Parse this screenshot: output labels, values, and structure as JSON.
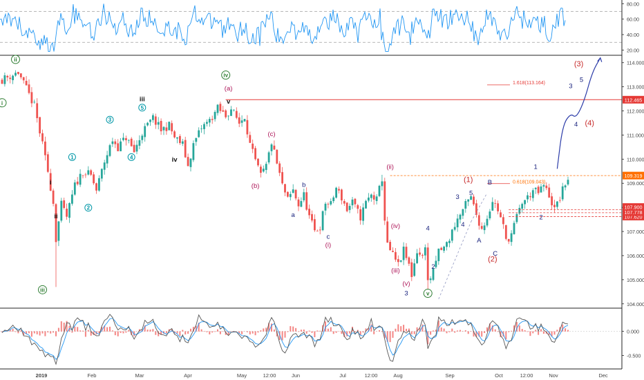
{
  "colors": {
    "candle_up": "#26a69a",
    "candle_down": "#ef5350",
    "rsi_line": "#2196f3",
    "macd_line": "#2962ff",
    "signal_line": "#ff6d00",
    "hist": "#ef5350",
    "resistance": "#e53935",
    "fib": "#ff6f00",
    "projection": "#2b3ba8",
    "projection_dash": "#9aa0c6",
    "label_green": "#2e7d32",
    "label_magenta": "#ad1457",
    "label_blue": "#0097a7",
    "label_navy": "#1a237e",
    "label_red": "#c62828",
    "label_black": "#111111"
  },
  "chart_data": {
    "type": "candlestick",
    "x_labels": [
      "2019",
      "Feb",
      "Mar",
      "Apr",
      "May",
      "12:00",
      "Jun",
      "Jul",
      "12:00",
      "Aug",
      "Sep",
      "Oct",
      "12:00",
      "Nov",
      "Dec"
    ],
    "price_axis": {
      "ylim": [
        103.85,
        114.25
      ],
      "ticks": [
        "104.000",
        "105.000",
        "106.000",
        "107.000",
        "108.000",
        "109.000",
        "110.000",
        "111.000",
        "112.000",
        "113.000",
        "114.000"
      ]
    },
    "rsi_axis": {
      "ylim": [
        15,
        83
      ],
      "ticks": [
        "20.00",
        "40.00",
        "60.00",
        "80.00"
      ],
      "levels": [
        30,
        70
      ]
    },
    "macd_axis": {
      "ylim": [
        -0.75,
        0.45
      ],
      "ticks": [
        "0.000",
        "-0.500"
      ]
    },
    "price_path": [
      [
        0,
        113.3
      ],
      [
        6,
        113.6
      ],
      [
        12,
        112.2
      ],
      [
        17,
        109.5
      ],
      [
        19,
        108.2
      ],
      [
        20,
        106.7
      ],
      [
        22,
        108.1
      ],
      [
        24,
        107.6
      ],
      [
        27,
        108.9
      ],
      [
        30,
        109.5
      ],
      [
        33,
        109.3
      ],
      [
        35,
        108.7
      ],
      [
        38,
        109.9
      ],
      [
        41,
        110.8
      ],
      [
        43,
        110.5
      ],
      [
        46,
        110.9
      ],
      [
        49,
        110.3
      ],
      [
        52,
        111.1
      ],
      [
        56,
        111.7
      ],
      [
        59,
        111.2
      ],
      [
        62,
        111.4
      ],
      [
        64,
        110.9
      ],
      [
        67,
        110.6
      ],
      [
        69,
        109.7
      ],
      [
        71,
        110.6
      ],
      [
        74,
        111.3
      ],
      [
        77,
        111.6
      ],
      [
        80,
        112.1
      ],
      [
        83,
        111.8
      ],
      [
        85,
        112.1
      ],
      [
        88,
        111.5
      ],
      [
        90,
        111.8
      ],
      [
        92,
        110.6
      ],
      [
        94,
        109.9
      ],
      [
        96,
        109.3
      ],
      [
        98,
        109.7
      ],
      [
        100,
        110.7
      ],
      [
        102,
        109.8
      ],
      [
        104,
        108.9
      ],
      [
        106,
        108.3
      ],
      [
        108,
        108.7
      ],
      [
        110,
        108.1
      ],
      [
        112,
        108.5
      ],
      [
        114,
        107.6
      ],
      [
        116,
        107.0
      ],
      [
        118,
        107.2
      ],
      [
        120,
        108.2
      ],
      [
        122,
        108.1
      ],
      [
        124,
        108.8
      ],
      [
        126,
        108.4
      ],
      [
        128,
        107.9
      ],
      [
        130,
        108.2
      ],
      [
        133,
        107.6
      ],
      [
        135,
        108.2
      ],
      [
        137,
        108.5
      ],
      [
        139,
        108.3
      ],
      [
        141,
        109.2
      ],
      [
        142,
        107.5
      ],
      [
        143,
        106.4
      ],
      [
        145,
        106.0
      ],
      [
        147,
        105.6
      ],
      [
        149,
        106.2
      ],
      [
        151,
        105.6
      ],
      [
        152,
        105.2
      ],
      [
        154,
        106.2
      ],
      [
        156,
        105.9
      ],
      [
        157,
        106.5
      ],
      [
        158,
        104.9
      ],
      [
        160,
        105.3
      ],
      [
        162,
        106.2
      ],
      [
        164,
        106.3
      ],
      [
        166,
        106.7
      ],
      [
        168,
        107.3
      ],
      [
        170,
        107.7
      ],
      [
        172,
        108.1
      ],
      [
        174,
        108.4
      ],
      [
        176,
        107.7
      ],
      [
        178,
        107.1
      ],
      [
        180,
        107.6
      ],
      [
        182,
        108.3
      ],
      [
        184,
        107.9
      ],
      [
        186,
        107.2
      ],
      [
        187,
        106.6
      ],
      [
        189,
        106.9
      ],
      [
        191,
        107.6
      ],
      [
        193,
        108.2
      ],
      [
        195,
        108.4
      ],
      [
        197,
        108.7
      ],
      [
        199,
        108.6
      ],
      [
        201,
        108.9
      ],
      [
        203,
        108.5
      ],
      [
        205,
        107.9
      ],
      [
        207,
        108.4
      ],
      [
        209,
        109.0
      ],
      [
        210,
        109.2
      ]
    ],
    "current_price": "109.319",
    "series": [
      {
        "name": "RSI"
      },
      {
        "name": "MACD"
      }
    ],
    "horizontal_levels": [
      {
        "label": "112.465",
        "value": 112.465,
        "style": "solid"
      },
      {
        "label": "109.319",
        "value": 109.319,
        "style": "dashed"
      },
      {
        "label": "107.620",
        "value": 107.62,
        "style": "dashed"
      },
      {
        "label": "107.778",
        "value": 107.778,
        "style": "dashed"
      },
      {
        "label": "107.900",
        "value": 107.9,
        "style": "dashed"
      }
    ],
    "fib_annotations": [
      {
        "text": "1.618(113.164)",
        "value": 113.164
      },
      {
        "text": "0.618(109.043)",
        "value": 109.043
      }
    ],
    "projection_path": [
      [
        206,
        109.6
      ],
      [
        208,
        111.4
      ],
      [
        211,
        111.9
      ],
      [
        213,
        111.7
      ],
      [
        216,
        112.4
      ],
      [
        219,
        113.6
      ],
      [
        222,
        114.2
      ]
    ],
    "wave_labels": [
      {
        "text": "i",
        "color": "green",
        "circled": true,
        "i": 0,
        "v": 112.25
      },
      {
        "text": "ii",
        "color": "green",
        "circled": true,
        "i": 5,
        "v": 114.05
      },
      {
        "text": "iii",
        "color": "green",
        "circled": true,
        "i": 15,
        "v": 104.5
      },
      {
        "text": "iv",
        "color": "green",
        "circled": true,
        "i": 83,
        "v": 113.4
      },
      {
        "text": "v",
        "color": "green",
        "circled": true,
        "i": 158,
        "v": 104.35
      },
      {
        "text": "i",
        "color": "black",
        "i": 18,
        "v": 108.95
      },
      {
        "text": "ii",
        "color": "black",
        "i": 20,
        "v": 107.55
      },
      {
        "text": "iii",
        "color": "black",
        "i": 52,
        "v": 112.4
      },
      {
        "text": "iv",
        "color": "black",
        "i": 64,
        "v": 109.9
      },
      {
        "text": "v",
        "color": "black",
        "i": 84,
        "v": 112.3
      },
      {
        "text": "1",
        "color": "blue",
        "circled": true,
        "i": 26,
        "v": 110.0
      },
      {
        "text": "2",
        "color": "blue",
        "circled": true,
        "i": 32,
        "v": 107.9
      },
      {
        "text": "3",
        "color": "blue",
        "circled": true,
        "i": 40,
        "v": 111.55
      },
      {
        "text": "4",
        "color": "blue",
        "circled": true,
        "i": 48,
        "v": 110.0
      },
      {
        "text": "5",
        "color": "blue",
        "circled": true,
        "i": 52,
        "v": 112.05
      },
      {
        "text": "(a)",
        "color": "magenta",
        "i": 84,
        "v": 112.85
      },
      {
        "text": "(b)",
        "color": "magenta",
        "i": 94,
        "v": 108.8
      },
      {
        "text": "(c)",
        "color": "magenta",
        "i": 100,
        "v": 110.95
      },
      {
        "text": "(i)",
        "color": "magenta",
        "i": 121,
        "v": 106.35
      },
      {
        "text": "(ii)",
        "color": "magenta",
        "i": 144,
        "v": 109.6
      },
      {
        "text": "(iv)",
        "color": "magenta",
        "i": 146,
        "v": 107.15
      },
      {
        "text": "(iii)",
        "color": "magenta",
        "i": 146,
        "v": 105.3
      },
      {
        "text": "(v)",
        "color": "magenta",
        "i": 150,
        "v": 104.75
      },
      {
        "text": "a",
        "color": "navy",
        "i": 108,
        "v": 107.6
      },
      {
        "text": "b",
        "color": "navy",
        "i": 112,
        "v": 108.85
      },
      {
        "text": "c",
        "color": "navy",
        "i": 121,
        "v": 106.7
      },
      {
        "text": "3",
        "color": "navy",
        "i": 150,
        "v": 104.35
      },
      {
        "text": "4",
        "color": "navy",
        "i": 158,
        "v": 107.05
      },
      {
        "text": "2",
        "color": "navy",
        "i": 160,
        "v": 105.45
      },
      {
        "text": "3",
        "color": "navy",
        "i": 169,
        "v": 108.35
      },
      {
        "text": "4",
        "color": "navy",
        "i": 171,
        "v": 107.2
      },
      {
        "text": "5",
        "color": "navy",
        "i": 174,
        "v": 108.5
      },
      {
        "text": "A",
        "color": "navy",
        "i": 177,
        "v": 106.55
      },
      {
        "text": "B",
        "color": "navy",
        "i": 181,
        "v": 108.95
      },
      {
        "text": "C",
        "color": "navy",
        "i": 183,
        "v": 106.0
      },
      {
        "text": "1",
        "color": "navy",
        "i": 198,
        "v": 109.6
      },
      {
        "text": "2",
        "color": "navy",
        "i": 200,
        "v": 107.5
      },
      {
        "text": "3",
        "color": "navy",
        "i": 211,
        "v": 112.95
      },
      {
        "text": "4",
        "color": "navy",
        "i": 213,
        "v": 111.35
      },
      {
        "text": "5",
        "color": "navy",
        "i": 215,
        "v": 113.2
      },
      {
        "text": "(1)",
        "color": "red",
        "i": 173,
        "v": 109.05
      },
      {
        "text": "(2)",
        "color": "red",
        "i": 182,
        "v": 105.75
      },
      {
        "text": "(3)",
        "color": "red",
        "i": 214,
        "v": 113.85
      },
      {
        "text": "(4)",
        "color": "red",
        "i": 218,
        "v": 111.4
      }
    ]
  }
}
